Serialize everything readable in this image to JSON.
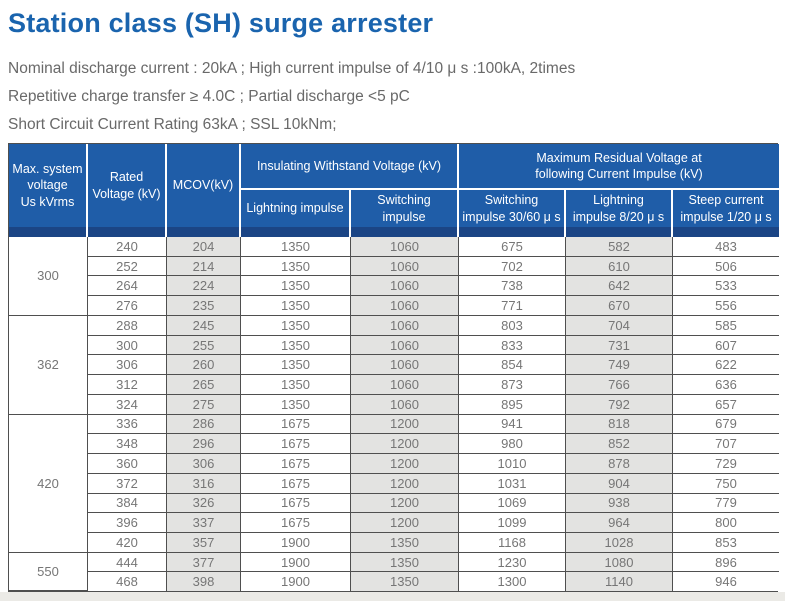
{
  "page": {
    "title": "Station class (SH) surge arrester",
    "spec_lines": [
      "Nominal discharge current : 20kA ; High current impulse of 4/10 μ s :100kA, 2times",
      "Repetitive charge transfer ≥ 4.0C ; Partial discharge <5 pC",
      "Short Circuit Current Rating 63kA ; SSL 10kNm;"
    ]
  },
  "colors": {
    "title_blue": "#1a64ae",
    "header_blue": "#1f5da8",
    "header_accent_dark_blue": "#1b4585",
    "shaded_cell_gray": "#e3e3e1",
    "border_gray": "#4f4f4f",
    "text_gray": "#767676"
  },
  "table": {
    "headers": {
      "max_system_voltage": "Max. system\nvoltage\nUs kVrms",
      "rated_voltage": "Rated\nVoltage (kV)",
      "mcov": "MCOV(kV)",
      "insulating_withstand": "Insulating Withstand Voltage (kV)",
      "max_residual": "Maximum Residual Voltage at\nfollowing Current Impulse (kV)",
      "lightning_impulse": "Lightning impulse",
      "switching_impulse": "Switching\nimpulse",
      "switching_impulse_3060": "Switching\nimpulse 30/60 μ s",
      "lightning_impulse_820": "Lightning\nimpulse  8/20 μ s",
      "steep_current_120": "Steep current\nimpulse 1/20 μ s"
    },
    "column_names": [
      "rated-voltage-cell",
      "mcov-cell",
      "lightning-impulse-withstand-cell",
      "switching-impulse-withstand-cell",
      "switching-impulse-residual-cell",
      "lightning-impulse-residual-cell",
      "steep-current-residual-cell"
    ],
    "groups": [
      {
        "label": "300",
        "span": 4
      },
      {
        "label": "362",
        "span": 5
      },
      {
        "label": "420",
        "span": 7
      },
      {
        "label": "550",
        "span": 2
      }
    ],
    "rows": [
      [
        240,
        204,
        1350,
        1060,
        675,
        582,
        483
      ],
      [
        252,
        214,
        1350,
        1060,
        702,
        610,
        506
      ],
      [
        264,
        224,
        1350,
        1060,
        738,
        642,
        533
      ],
      [
        276,
        235,
        1350,
        1060,
        771,
        670,
        556
      ],
      [
        288,
        245,
        1350,
        1060,
        803,
        704,
        585
      ],
      [
        300,
        255,
        1350,
        1060,
        833,
        731,
        607
      ],
      [
        306,
        260,
        1350,
        1060,
        854,
        749,
        622
      ],
      [
        312,
        265,
        1350,
        1060,
        873,
        766,
        636
      ],
      [
        324,
        275,
        1350,
        1060,
        895,
        792,
        657
      ],
      [
        336,
        286,
        1675,
        1200,
        941,
        818,
        679
      ],
      [
        348,
        296,
        1675,
        1200,
        980,
        852,
        707
      ],
      [
        360,
        306,
        1675,
        1200,
        1010,
        878,
        729
      ],
      [
        372,
        316,
        1675,
        1200,
        1031,
        904,
        750
      ],
      [
        384,
        326,
        1675,
        1200,
        1069,
        938,
        779
      ],
      [
        396,
        337,
        1675,
        1200,
        1099,
        964,
        800
      ],
      [
        420,
        357,
        1900,
        1350,
        1168,
        1028,
        853
      ],
      [
        444,
        377,
        1900,
        1350,
        1230,
        1080,
        896
      ],
      [
        468,
        398,
        1900,
        1350,
        1300,
        1140,
        946
      ]
    ]
  }
}
